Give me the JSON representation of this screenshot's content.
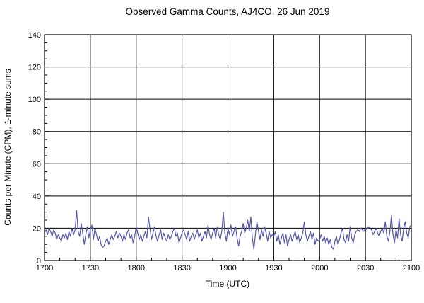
{
  "chart_data": {
    "type": "line",
    "title": "Observed Gamma Counts, AJ4CO, 26 Jun 2019",
    "xlabel": "Time (UTC)",
    "ylabel": "Counts per Minute (CPM), 1-minute sums",
    "x_tick_labels": [
      "1700",
      "1730",
      "1800",
      "1830",
      "1900",
      "1930",
      "2000",
      "2030",
      "2100"
    ],
    "y_tick_labels": [
      "0",
      "20",
      "40",
      "60",
      "80",
      "100",
      "120",
      "140"
    ],
    "x_total_minutes": 240,
    "x_major_interval_min": 30,
    "x_minor_interval_min": 10,
    "x_step_minutes": 1,
    "ylim": [
      0,
      140
    ],
    "y_major_interval": 20,
    "y_minor_interval": 5,
    "grid": "on",
    "legend": "none",
    "line_color": "#5457aa",
    "axis_color": "#000000",
    "background_color": "#ffffff",
    "series": [
      {
        "name": "gamma-counts-cpm-1min",
        "values": [
          17,
          19,
          16,
          20,
          18,
          15,
          19,
          17,
          13,
          16,
          14,
          12,
          16,
          14,
          17,
          13,
          18,
          15,
          20,
          16,
          19,
          31,
          18,
          15,
          23,
          17,
          10,
          16,
          21,
          14,
          19,
          22,
          13,
          20,
          16,
          12,
          15,
          10,
          8,
          9,
          12,
          14,
          10,
          13,
          16,
          13,
          15,
          18,
          14,
          17,
          15,
          12,
          16,
          13,
          17,
          19,
          14,
          16,
          11,
          15,
          21,
          17,
          13,
          16,
          12,
          15,
          18,
          14,
          27,
          20,
          13,
          17,
          21,
          15,
          12,
          16,
          19,
          13,
          17,
          14,
          12,
          16,
          13,
          15,
          18,
          20,
          15,
          17,
          11,
          14,
          17,
          19,
          16,
          13,
          18,
          12,
          15,
          17,
          13,
          16,
          19,
          14,
          17,
          12,
          15,
          18,
          14,
          22,
          16,
          13,
          17,
          20,
          14,
          21,
          16,
          13,
          18,
          30,
          17,
          12,
          20,
          16,
          22,
          15,
          18,
          21,
          14,
          9,
          15,
          18,
          23,
          17,
          20,
          25,
          18,
          27,
          14,
          7,
          16,
          24,
          18,
          13,
          19,
          15,
          21,
          17,
          12,
          18,
          14,
          16,
          15,
          18,
          12,
          16,
          10,
          14,
          17,
          11,
          16,
          9,
          13,
          16,
          12,
          15,
          18,
          13,
          16,
          11,
          14,
          17,
          24,
          16,
          12,
          15,
          18,
          13,
          17,
          10,
          14,
          12,
          13,
          16,
          12,
          15,
          11,
          14,
          10,
          13,
          8,
          7,
          12,
          15,
          10,
          13,
          17,
          20,
          13,
          11,
          16,
          12,
          21,
          14,
          11,
          16,
          18,
          19,
          18,
          20,
          19,
          18,
          20,
          19,
          21,
          20,
          19,
          16,
          18,
          20,
          17,
          15,
          18,
          20,
          17,
          24,
          15,
          12,
          18,
          28,
          16,
          11,
          19,
          14,
          26,
          16,
          12,
          20,
          24,
          17,
          14,
          21,
          22
        ]
      }
    ]
  }
}
